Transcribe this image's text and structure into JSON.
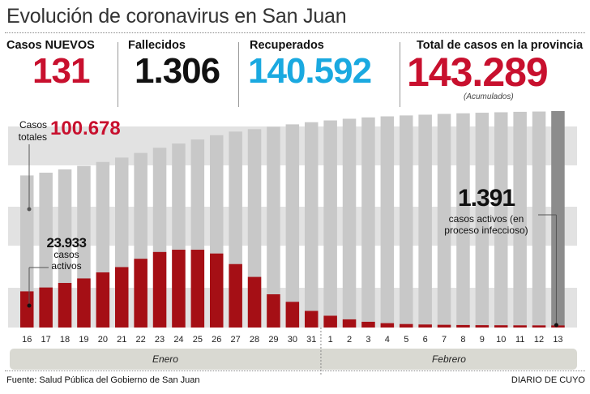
{
  "title": "Evolución de coronavirus en San Juan",
  "stats": {
    "nuevos_label": "Casos NUEVOS",
    "nuevos_value": "131",
    "fallecidos_label": "Fallecidos",
    "fallecidos_value": "1.306",
    "recuperados_label": "Recuperados",
    "recuperados_value": "140.592",
    "total_label": "Total de casos en la provincia",
    "total_value": "143.289",
    "total_note": "(Acumulados)"
  },
  "annotations": {
    "totales_label_1": "Casos",
    "totales_label_2": "totales",
    "totales_value": "100.678",
    "activos_inicio_value": "23.933",
    "activos_inicio_label_1": "casos",
    "activos_inicio_label_2": "activos",
    "activos_fin_value": "1.391",
    "activos_fin_label_1": "casos activos (en",
    "activos_fin_label_2": "proceso infeccioso)"
  },
  "months": {
    "enero": "Enero",
    "febrero": "Febrero"
  },
  "footer": {
    "source": "Fuente: Salud Pública del Gobierno de San Juan",
    "brand": "DIARIO DE CUYO"
  },
  "colors": {
    "total_bar": "#c8c8c8",
    "last_bar": "#8c8c8c",
    "active_bar": "#a50f15",
    "red_value": "#c8102e",
    "blue_value": "#1aa9e0",
    "band": "#e2e2e2",
    "month_bar": "#d9d9d2"
  },
  "chart_data": {
    "type": "bar",
    "title": "Evolución de coronavirus en San Juan",
    "categories": [
      "16",
      "17",
      "18",
      "19",
      "20",
      "21",
      "22",
      "23",
      "24",
      "25",
      "26",
      "27",
      "28",
      "29",
      "30",
      "31",
      "1",
      "2",
      "3",
      "4",
      "5",
      "6",
      "7",
      "8",
      "9",
      "10",
      "11",
      "12",
      "13"
    ],
    "month_groups": [
      {
        "name": "Enero",
        "from": "16",
        "to": "31"
      },
      {
        "name": "Febrero",
        "from": "1",
        "to": "13"
      }
    ],
    "series": [
      {
        "name": "Casos totales",
        "values": [
          100678,
          102500,
          104700,
          107000,
          109600,
          112500,
          115600,
          119000,
          121800,
          124500,
          127300,
          129700,
          131300,
          132900,
          134500,
          135900,
          137100,
          138200,
          139100,
          139800,
          140400,
          140900,
          141400,
          141800,
          142200,
          142500,
          142800,
          143000,
          143289
        ]
      },
      {
        "name": "Casos activos",
        "values": [
          23933,
          26500,
          29500,
          32500,
          36500,
          40000,
          45500,
          50000,
          51500,
          51500,
          49000,
          42000,
          33500,
          22000,
          17000,
          11000,
          7800,
          5400,
          3800,
          2900,
          2300,
          2000,
          1800,
          1650,
          1550,
          1500,
          1450,
          1420,
          1391
        ]
      }
    ]
  }
}
